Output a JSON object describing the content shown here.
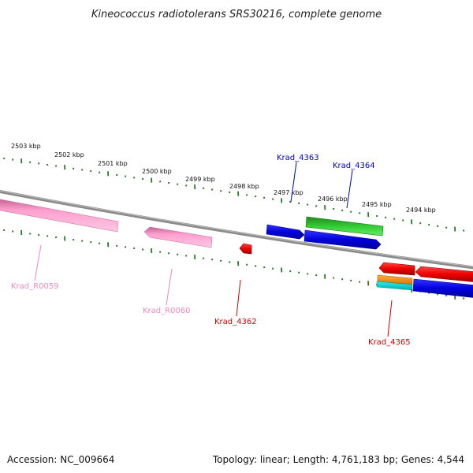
{
  "title": "Kineococcus radiotolerans SRS30216, complete genome",
  "footer": {
    "accession": "Accession: NC_009664",
    "summary": "Topology: linear; Length: 4,761,183 bp; Genes: 4,544"
  },
  "colors": {
    "backbone": "#888888",
    "tick": "#2a7a2a",
    "pink": "#ff9fcf",
    "red": "#ee0000",
    "blue": "#0000dd",
    "green": "#33cc33",
    "orange": "#ff8c00",
    "cyan": "#00cccc"
  },
  "kbp_labels": [
    "2503 kbp",
    "2502 kbp",
    "2501 kbp",
    "2500 kbp",
    "2499 kbp",
    "2498 kbp",
    "2497 kbp",
    "2496 kbp",
    "2495 kbp",
    "2494 kbp"
  ],
  "genes": [
    {
      "id": "Krad_R0059",
      "color": "#ff9fcf",
      "label_color": "#ee88c0"
    },
    {
      "id": "Krad_R0060",
      "color": "#ff9fcf",
      "label_color": "#ee88c0"
    },
    {
      "id": "Krad_4362",
      "color": "#ee0000",
      "label_color": "#cc0000"
    },
    {
      "id": "Krad_4363",
      "color": "#0000dd",
      "label_color": "#0000bb"
    },
    {
      "id": "Krad_4364",
      "color": "#0000dd",
      "label_color": "#0000bb"
    },
    {
      "id": "Krad_4365",
      "color": "#ee0000",
      "label_color": "#cc0000"
    }
  ]
}
